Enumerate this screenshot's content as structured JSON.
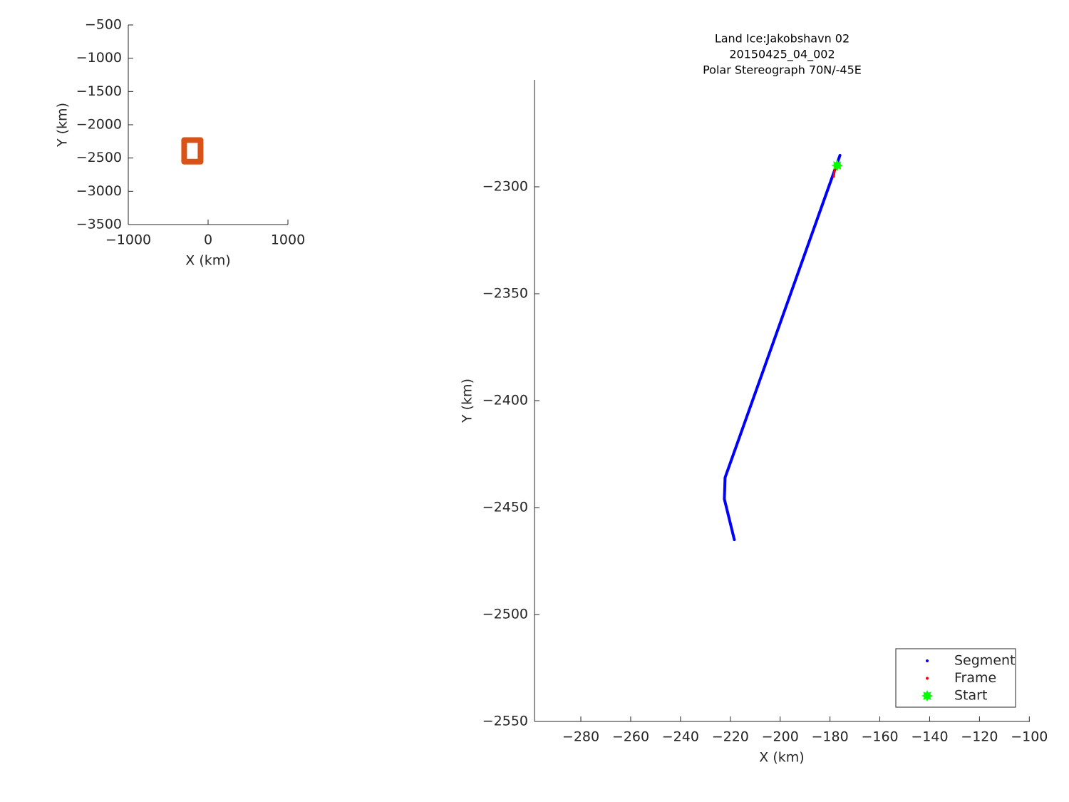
{
  "chart_data": [
    {
      "type": "line",
      "xlabel": "X (km)",
      "ylabel": "Y (km)",
      "xlim": [
        -1000,
        1000
      ],
      "ylim": [
        -3500,
        -500
      ],
      "xticks": [
        {
          "value": -1000,
          "label": "−1000"
        },
        0,
        1000
      ],
      "yticks": [
        {
          "value": -500,
          "label": "−500"
        },
        {
          "value": -1000,
          "label": "−1000"
        },
        {
          "value": -1500,
          "label": "−1500"
        },
        {
          "value": -2000,
          "label": "−2000"
        },
        {
          "value": -2500,
          "label": "−2500"
        },
        {
          "value": -3000,
          "label": "−3000"
        },
        {
          "value": -3500,
          "label": "−3500"
        }
      ],
      "series": [
        {
          "color": "#d95319",
          "linewidth": 8,
          "marker": "-",
          "x": [
            -300,
            -95,
            -95,
            -300,
            -300
          ],
          "y": [
            -2230,
            -2230,
            -2555,
            -2555,
            -2230
          ]
        }
      ]
    },
    {
      "type": "line",
      "title": [
        "Land Ice:Jakobshavn 02",
        "20150425_04_002",
        "Polar Stereograph 70N/-45E"
      ],
      "xlabel": "X (km)",
      "ylabel": "Y (km)",
      "xlim": [
        -298.6,
        -99.8
      ],
      "ylim": [
        -2550,
        -2250
      ],
      "xticks": [
        {
          "value": -280,
          "label": "−280"
        },
        {
          "value": -260,
          "label": "−260"
        },
        {
          "value": -240,
          "label": "−240"
        },
        {
          "value": -220,
          "label": "−220"
        },
        {
          "value": -200,
          "label": "−200"
        },
        {
          "value": -180,
          "label": "−180"
        },
        {
          "value": -160,
          "label": "−160"
        },
        {
          "value": -140,
          "label": "−140"
        },
        {
          "value": -120,
          "label": "−120"
        },
        {
          "value": -100,
          "label": "−100"
        }
      ],
      "yticks": [
        {
          "value": -2550,
          "label": "−2550"
        },
        {
          "value": -2500,
          "label": "−2500"
        },
        {
          "value": -2450,
          "label": "−2450"
        },
        {
          "value": -2400,
          "label": "−2400"
        },
        {
          "value": -2350,
          "label": "−2350"
        },
        {
          "value": -2300,
          "label": "−2300"
        }
      ],
      "legend": "lower right",
      "series": [
        {
          "name": "Segment",
          "color": "#0000ff",
          "linewidth": 4,
          "marker": ".",
          "x": [
            -176,
            -222.1,
            -222.4,
            -218.4
          ],
          "y": [
            -2285.3,
            -2436,
            -2446,
            -2465
          ]
        },
        {
          "name": "Frame",
          "color": "#ff0000",
          "linewidth": 3,
          "marker": ".",
          "x": [
            -177.8,
            -178.5
          ],
          "y": [
            -2290,
            -2295.3
          ]
        },
        {
          "name": "Start",
          "color": "#00ff00",
          "linewidth": 0,
          "marker": "*",
          "x": [
            -177.1
          ],
          "y": [
            -2290
          ]
        }
      ]
    }
  ]
}
